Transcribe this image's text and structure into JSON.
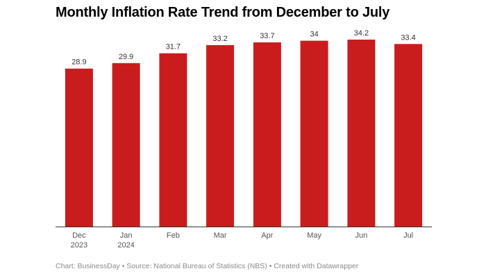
{
  "chart_data": {
    "type": "bar",
    "title": "Monthly Inflation Rate Trend from December to July",
    "categories": [
      [
        "Dec",
        "2023"
      ],
      [
        "Jan",
        "2024"
      ],
      [
        "Feb"
      ],
      [
        "Mar"
      ],
      [
        "Apr"
      ],
      [
        "May"
      ],
      [
        "Jun"
      ],
      [
        "Jul"
      ]
    ],
    "values": [
      28.9,
      29.9,
      31.7,
      33.2,
      33.7,
      34,
      34.2,
      33.4
    ],
    "value_labels": [
      "28.9",
      "29.9",
      "31.7",
      "33.2",
      "33.7",
      "34",
      "34.2",
      "33.4"
    ],
    "ylim": [
      0,
      37
    ],
    "xlabel": "",
    "ylabel": "",
    "grid": false,
    "colors": {
      "bar": "#c91d1d",
      "axis": "#333333",
      "label": "#333333"
    }
  },
  "footer": {
    "text": "Chart: BusinessDay • Source: National Bureau of Statistics (NBS) • Created with Datawrapper"
  }
}
